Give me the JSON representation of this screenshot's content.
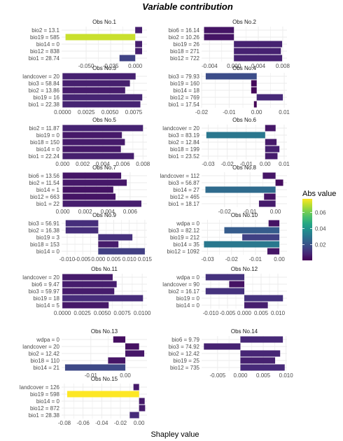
{
  "chart_data": {
    "type": "bar",
    "orientation": "horizontal",
    "title": "Variable contribution",
    "xlabel": "Shapley value",
    "legend": {
      "title": "Abs value",
      "position": "right",
      "ticks": [
        0.02,
        0.04,
        0.06
      ],
      "range": [
        0.0005,
        0.077
      ],
      "colormap": "viridis"
    },
    "panels": [
      {
        "title": "Obs No.1",
        "xlim": [
          -0.075,
          0.012
        ],
        "ticks": [
          -0.05,
          -0.025,
          0.0
        ],
        "tick_labels": [
          "-0.050",
          "-0.025",
          "0.000"
        ],
        "bars": [
          {
            "label": "bio2 = 13.1",
            "value": 0.007
          },
          {
            "label": "bio19 = 585",
            "value": -0.071
          },
          {
            "label": "bio14 = 0",
            "value": 0.007
          },
          {
            "label": "bio12 = 838",
            "value": 0.007
          },
          {
            "label": "bio1 = 28.74",
            "value": -0.016
          }
        ]
      },
      {
        "title": "Obs No.2",
        "xlim": [
          -0.0053,
          0.0087
        ],
        "ticks": [
          -0.004,
          0.0,
          0.004,
          0.008
        ],
        "tick_labels": [
          "-0.004",
          "0.000",
          "0.004",
          "0.008"
        ],
        "bars": [
          {
            "label": "bio6 = 16.14",
            "value": -0.0049
          },
          {
            "label": "bio2 = 10.26",
            "value": -0.0049
          },
          {
            "label": "bio19 = 26",
            "value": 0.0079
          },
          {
            "label": "bio18 = 271",
            "value": 0.0077
          },
          {
            "label": "bio12 = 722",
            "value": 0.0079
          }
        ]
      },
      {
        "title": "Obs No.3",
        "xlim": [
          -0.0001,
          0.0089
        ],
        "ticks": [
          0.0,
          0.0025,
          0.005,
          0.0075
        ],
        "tick_labels": [
          "0.0000",
          "0.0025",
          "0.0050",
          "0.0075"
        ],
        "bars": [
          {
            "label": "landcover = 20",
            "value": 0.0077
          },
          {
            "label": "bio3 = 58.84",
            "value": 0.0071
          },
          {
            "label": "bio2 = 13.86",
            "value": 0.0066
          },
          {
            "label": "bio19 = 16",
            "value": 0.0084
          },
          {
            "label": "bio1 = 22.38",
            "value": 0.0082
          }
        ]
      },
      {
        "title": "Obs No.4",
        "xlim": [
          -0.02,
          0.011
        ],
        "ticks": [
          -0.02,
          -0.01,
          0.0,
          0.01
        ],
        "tick_labels": [
          "-0.02",
          "-0.01",
          "0.00",
          "0.01"
        ],
        "bars": [
          {
            "label": "bio3 = 79.93",
            "value": -0.0185
          },
          {
            "label": "bio19 = 160",
            "value": -0.002
          },
          {
            "label": "bio14 = 18",
            "value": -0.002
          },
          {
            "label": "bio12 = 769",
            "value": 0.0095
          },
          {
            "label": "bio1 = 17.54",
            "value": -0.001
          }
        ]
      },
      {
        "title": "Obs No.5",
        "xlim": [
          -0.0001,
          0.0084
        ],
        "ticks": [
          0.0,
          0.002,
          0.004,
          0.006,
          0.008
        ],
        "tick_labels": [
          "0.000",
          "0.002",
          "0.004",
          "0.006",
          "0.008"
        ],
        "bars": [
          {
            "label": "bio2 = 11.87",
            "value": 0.008
          },
          {
            "label": "bio19 = 0",
            "value": 0.0059
          },
          {
            "label": "bio18 = 150",
            "value": 0.0062
          },
          {
            "label": "bio14 = 0",
            "value": 0.0058
          },
          {
            "label": "bio1 = 22.24",
            "value": 0.0071
          }
        ]
      },
      {
        "title": "Obs No.6",
        "xlim": [
          -0.0335,
          0.0115
        ],
        "ticks": [
          -0.03,
          -0.02,
          -0.01,
          0.0,
          0.01
        ],
        "tick_labels": [
          "-0.03",
          "-0.02",
          "-0.01",
          "0.00",
          "0.01"
        ],
        "bars": [
          {
            "label": "landcover = 20",
            "value": 0.0055
          },
          {
            "label": "bio3 = 83.19",
            "value": -0.031
          },
          {
            "label": "bio2 = 12.84",
            "value": 0.006
          },
          {
            "label": "bio18 = 199",
            "value": 0.0075
          },
          {
            "label": "bio1 = 23.52",
            "value": 0.0065
          }
        ]
      },
      {
        "title": "Obs No.7",
        "xlim": [
          -0.0001,
          0.0075
        ],
        "ticks": [
          0.0,
          0.002,
          0.004,
          0.006
        ],
        "tick_labels": [
          "0.000",
          "0.002",
          "0.004",
          "0.006"
        ],
        "bars": [
          {
            "label": "bio6 = 13.56",
            "value": 0.0052
          },
          {
            "label": "bio2 = 11.54",
            "value": 0.0057
          },
          {
            "label": "bio14 = 1",
            "value": 0.0045
          },
          {
            "label": "bio12 = 663",
            "value": 0.0047
          },
          {
            "label": "bio1 = 22",
            "value": 0.007
          }
        ]
      },
      {
        "title": "Obs No.8",
        "xlim": [
          -0.029,
          0.0045
        ],
        "ticks": [
          -0.02,
          -0.01,
          0.0
        ],
        "tick_labels": [
          "-0.02",
          "-0.01",
          "0.00"
        ],
        "bars": [
          {
            "label": "landcover = 112",
            "value": -0.005
          },
          {
            "label": "bio3 = 56.87",
            "value": 0.003
          },
          {
            "label": "bio14 = 27",
            "value": -0.0275
          },
          {
            "label": "bio12 = 465",
            "value": -0.0045
          },
          {
            "label": "bio1 = 18.17",
            "value": -0.0065
          }
        ]
      },
      {
        "title": "Obs No.9",
        "xlim": [
          -0.0118,
          0.0157
        ],
        "ticks": [
          -0.01,
          -0.005,
          0.0,
          0.005,
          0.01,
          0.015
        ],
        "tick_labels": [
          "-0.010",
          "-0.005",
          "0.000",
          "0.005",
          "0.010",
          "0.015"
        ],
        "bars": [
          {
            "label": "bio3 = 56.91",
            "value": -0.0105
          },
          {
            "label": "bio2 = 16.38",
            "value": -0.0105
          },
          {
            "label": "bio19 = 3",
            "value": 0.011
          },
          {
            "label": "bio18 = 153",
            "value": 0.0065
          },
          {
            "label": "bio14 = 0",
            "value": 0.015
          }
        ]
      },
      {
        "title": "Obs No.10",
        "xlim": [
          -0.0325,
          0.0032
        ],
        "ticks": [
          -0.03,
          -0.02,
          -0.01,
          0.0
        ],
        "tick_labels": [
          "-0.03",
          "-0.02",
          "-0.01",
          "0.00"
        ],
        "bars": [
          {
            "label": "wdpa = 0",
            "value": -0.0045
          },
          {
            "label": "bio3 = 82.12",
            "value": -0.023
          },
          {
            "label": "bio19 = 212",
            "value": -0.0155
          },
          {
            "label": "bio14 = 35",
            "value": -0.0315
          },
          {
            "label": "bio12 = 1092",
            "value": -0.005
          }
        ]
      },
      {
        "title": "Obs No.11",
        "xlim": [
          -0.0001,
          0.0106
        ],
        "ticks": [
          0.0,
          0.0025,
          0.005,
          0.0075,
          0.01
        ],
        "tick_labels": [
          "0.0000",
          "0.0025",
          "0.0050",
          "0.0075",
          "0.0100"
        ],
        "bars": [
          {
            "label": "landcover = 20",
            "value": 0.0063
          },
          {
            "label": "bio6 = 9.47",
            "value": 0.0068
          },
          {
            "label": "bio3 = 59.97",
            "value": 0.0065
          },
          {
            "label": "bio19 = 18",
            "value": 0.0101
          },
          {
            "label": "bio14 = 5",
            "value": 0.0058
          }
        ]
      },
      {
        "title": "Obs No.12",
        "xlim": [
          -0.0127,
          0.0127
        ],
        "ticks": [
          -0.01,
          -0.005,
          0.0,
          0.005,
          0.01
        ],
        "tick_labels": [
          "-0.010",
          "-0.005",
          "0.000",
          "0.005",
          "0.010"
        ],
        "bars": [
          {
            "label": "wdpa = 0",
            "value": -0.0115
          },
          {
            "label": "landcover = 90",
            "value": -0.0045
          },
          {
            "label": "bio2 = 16.17",
            "value": -0.0115
          },
          {
            "label": "bio19 = 0",
            "value": 0.0115
          },
          {
            "label": "bio14 = 0",
            "value": 0.007
          }
        ]
      },
      {
        "title": "Obs No.13",
        "xlim": [
          -0.0185,
          0.0063
        ],
        "ticks": [
          -0.01,
          0.0
        ],
        "tick_labels": [
          "-0.01",
          "0.00"
        ],
        "bars": [
          {
            "label": "wdpa = 0",
            "value": -0.0035
          },
          {
            "label": "landcover = 20",
            "value": 0.004
          },
          {
            "label": "bio2 = 12.42",
            "value": 0.0055
          },
          {
            "label": "bio18 = 110",
            "value": -0.005
          },
          {
            "label": "bio14 = 21",
            "value": -0.0175
          }
        ]
      },
      {
        "title": "Obs No.14",
        "xlim": [
          -0.0085,
          0.0102
        ],
        "ticks": [
          -0.005,
          0.0,
          0.005,
          0.01
        ],
        "tick_labels": [
          "-0.005",
          "0.000",
          "0.005",
          "0.010"
        ],
        "bars": [
          {
            "label": "bio6 = 9.79",
            "value": 0.0093
          },
          {
            "label": "bio3 = 74.92",
            "value": -0.008
          },
          {
            "label": "bio2 = 12.42",
            "value": 0.0087
          },
          {
            "label": "bio19 = 25",
            "value": 0.0076
          },
          {
            "label": "bio12 = 735",
            "value": 0.0097
          }
        ]
      },
      {
        "title": "Obs No.15",
        "xlim": [
          -0.083,
          0.0085
        ],
        "ticks": [
          -0.08,
          -0.06,
          -0.04,
          -0.02,
          0.0
        ],
        "tick_labels": [
          "-0.08",
          "-0.06",
          "-0.04",
          "-0.02",
          "0.00"
        ],
        "bars": [
          {
            "label": "landcover = 126",
            "value": -0.006
          },
          {
            "label": "bio19 = 598",
            "value": -0.077
          },
          {
            "label": "bio14 = 0",
            "value": 0.006
          },
          {
            "label": "bio12 = 872",
            "value": 0.0065
          },
          {
            "label": "bio1 = 28.38",
            "value": -0.01
          }
        ]
      }
    ]
  }
}
